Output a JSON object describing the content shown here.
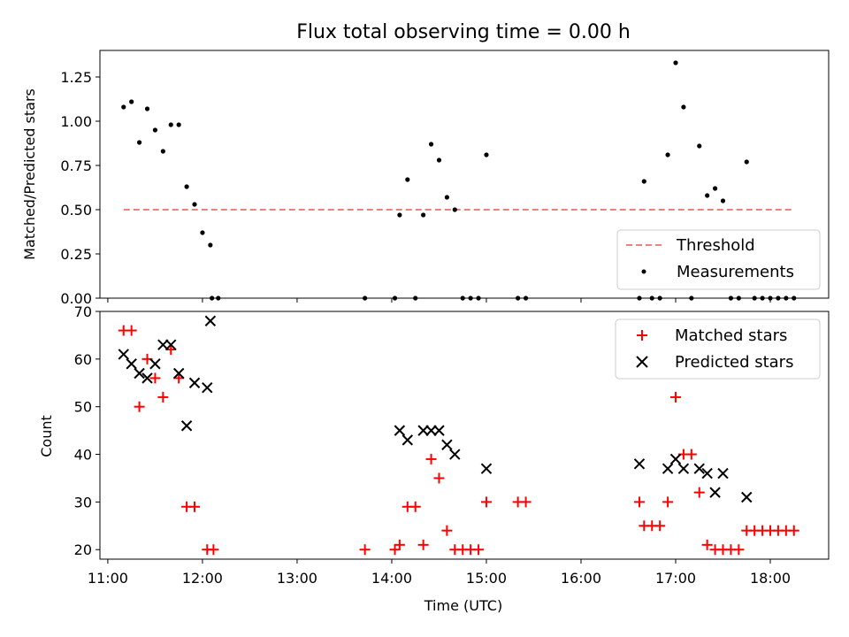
{
  "chart_data": [
    {
      "type": "scatter",
      "title": "Flux total observing time = 0.00 h",
      "ylabel": "Matched/Predicted stars",
      "xlabel": "",
      "ylim": [
        0,
        1.4
      ],
      "yticks": [
        "0.00",
        "0.25",
        "0.50",
        "0.75",
        "1.00",
        "1.25"
      ],
      "legend_position": "lower-right",
      "series": [
        {
          "name": "Threshold",
          "kind": "dashed-line",
          "color": "#f08080",
          "x": [
            "11:10",
            "18:15"
          ],
          "y": [
            0.5,
            0.5
          ]
        },
        {
          "name": "Measurements",
          "kind": "dot",
          "color": "#000000",
          "x": [
            "11:10",
            "11:15",
            "11:20",
            "11:25",
            "11:30",
            "11:35",
            "11:40",
            "11:45",
            "11:50",
            "11:55",
            "12:00",
            "12:05",
            "12:06",
            "12:10",
            "13:43",
            "14:02",
            "14:05",
            "14:10",
            "14:15",
            "14:20",
            "14:25",
            "14:30",
            "14:35",
            "14:40",
            "14:45",
            "14:50",
            "14:55",
            "15:00",
            "15:20",
            "15:25",
            "16:37",
            "16:40",
            "16:45",
            "16:50",
            "16:55",
            "17:00",
            "17:05",
            "17:10",
            "17:15",
            "17:20",
            "17:25",
            "17:30",
            "17:35",
            "17:40",
            "17:45",
            "17:50",
            "17:55",
            "18:00",
            "18:05",
            "18:10",
            "18:15"
          ],
          "y": [
            1.08,
            1.11,
            0.88,
            1.07,
            0.95,
            0.83,
            0.98,
            0.98,
            0.63,
            0.53,
            0.37,
            0.3,
            0.0,
            0.0,
            0.0,
            0.0,
            0.47,
            0.67,
            0.0,
            0.47,
            0.87,
            0.78,
            0.57,
            0.5,
            0.0,
            0.0,
            0.0,
            0.81,
            0.0,
            0.0,
            0.0,
            0.66,
            0.0,
            0.0,
            0.81,
            1.33,
            1.08,
            0.0,
            0.86,
            0.58,
            0.62,
            0.55,
            0.0,
            0.0,
            0.77,
            0.0,
            0.0,
            0.0,
            0.0,
            0.0,
            0.0
          ]
        }
      ]
    },
    {
      "type": "scatter",
      "title": "",
      "ylabel": "Count",
      "xlabel": "Time (UTC)",
      "xlim": [
        "10:55",
        "18:37"
      ],
      "xticks": [
        "11:00",
        "12:00",
        "13:00",
        "14:00",
        "15:00",
        "16:00",
        "17:00",
        "18:00"
      ],
      "ylim": [
        18,
        70
      ],
      "yticks": [
        "20",
        "30",
        "40",
        "50",
        "60",
        "70"
      ],
      "legend_position": "upper-right",
      "series": [
        {
          "name": "Matched stars",
          "kind": "plus",
          "color": "#ff0000",
          "x": [
            "11:10",
            "11:15",
            "11:20",
            "11:25",
            "11:30",
            "11:35",
            "11:40",
            "11:45",
            "11:50",
            "11:55",
            "12:03",
            "12:07",
            "13:43",
            "14:02",
            "14:05",
            "14:10",
            "14:15",
            "14:20",
            "14:25",
            "14:30",
            "14:35",
            "14:40",
            "14:45",
            "14:50",
            "14:55",
            "15:00",
            "15:20",
            "15:25",
            "16:37",
            "16:40",
            "16:45",
            "16:50",
            "16:55",
            "17:00",
            "17:05",
            "17:10",
            "17:15",
            "17:20",
            "17:25",
            "17:30",
            "17:35",
            "17:40",
            "17:45",
            "17:50",
            "17:55",
            "18:00",
            "18:05",
            "18:10",
            "18:15"
          ],
          "y": [
            66,
            66,
            50,
            60,
            56,
            52,
            62,
            56,
            29,
            29,
            20,
            20,
            20,
            20,
            21,
            29,
            29,
            21,
            39,
            35,
            24,
            20,
            20,
            20,
            20,
            30,
            30,
            30,
            30,
            25,
            25,
            25,
            30,
            52,
            40,
            40,
            32,
            21,
            20,
            20,
            20,
            20,
            24,
            24,
            24,
            24,
            24,
            24,
            24
          ]
        },
        {
          "name": "Predicted stars",
          "kind": "x",
          "color": "#000000",
          "x": [
            "11:10",
            "11:15",
            "11:20",
            "11:25",
            "11:30",
            "11:35",
            "11:40",
            "11:45",
            "11:50",
            "11:55",
            "12:03",
            "12:05",
            "14:05",
            "14:10",
            "14:20",
            "14:25",
            "14:30",
            "14:35",
            "14:40",
            "15:00",
            "16:37",
            "16:55",
            "17:00",
            "17:05",
            "17:15",
            "17:20",
            "17:25",
            "17:30",
            "17:45"
          ],
          "y": [
            61,
            59,
            57,
            56,
            59,
            63,
            63,
            57,
            46,
            55,
            54,
            68,
            45,
            43,
            45,
            45,
            45,
            42,
            40,
            37,
            38,
            37,
            39,
            37,
            37,
            36,
            32,
            36,
            31
          ]
        }
      ]
    }
  ]
}
